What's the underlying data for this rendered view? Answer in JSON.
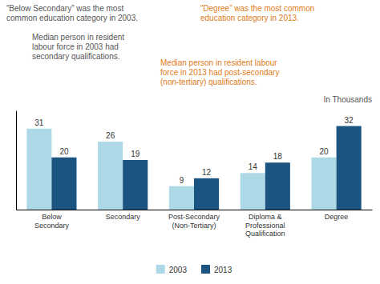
{
  "chart_data": {
    "type": "bar",
    "categories": [
      "Below\nSecondary",
      "Secondary",
      "Post-Secondary\n(Non-Tertiary)",
      "Diploma &\nProfessional\nQualification",
      "Degree"
    ],
    "series": [
      {
        "name": "2003",
        "color": "#add8e6",
        "values": [
          31,
          26,
          9,
          14,
          20
        ]
      },
      {
        "name": "2013",
        "color": "#1b5480",
        "values": [
          20,
          19,
          12,
          18,
          32
        ]
      }
    ],
    "ylim": [
      0,
      38
    ],
    "tick_labels": "x",
    "data_labels": true,
    "legend": "bottom",
    "annotations": [
      {
        "text": "“Below Secondary” was the most\ncommon education category in 2003.",
        "color": "#555555"
      },
      {
        "text": "Median person in resident\nlabour force in 2003 had\nsecondary qualifications.",
        "color": "#555555"
      },
      {
        "text": "“Degree” was the most common\neducation category in 2013.",
        "color": "#e07b20"
      },
      {
        "text": "Median person in resident labour\nforce in 2013 had post-secondary\n(non-tertiary) qualifications.",
        "color": "#e07b20"
      },
      {
        "text": "In Thousands",
        "color": "#555555"
      }
    ]
  }
}
